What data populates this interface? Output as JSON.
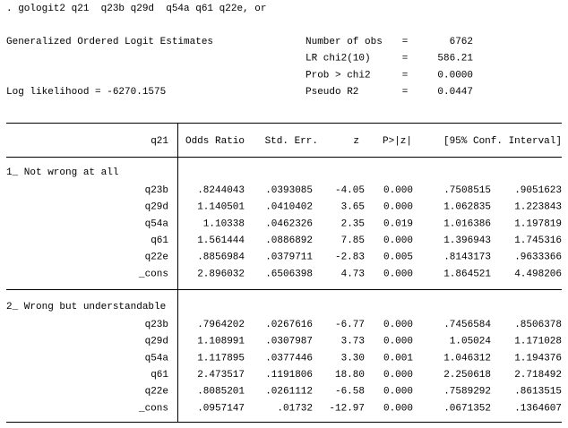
{
  "command": ". gologit2 q21  q23b q29d  q54a q61 q22e, or",
  "header": {
    "title": "Generalized Ordered Logit Estimates",
    "log_likelihood": "Log likelihood = -6270.1575",
    "stats": [
      {
        "label": "Number of obs",
        "eq": "=",
        "value": "6762"
      },
      {
        "label": "LR chi2(10)",
        "eq": "=",
        "value": "586.21"
      },
      {
        "label": "Prob > chi2",
        "eq": "=",
        "value": "0.0000"
      },
      {
        "label": "Pseudo R2",
        "eq": "=",
        "value": "0.0447"
      }
    ]
  },
  "table": {
    "columns": [
      "q21",
      "Odds Ratio",
      "Std. Err.",
      "z",
      "P>|z|",
      "[95% Conf. Interval]"
    ],
    "groups": [
      {
        "label": "1_ Not wrong at all",
        "rows": [
          [
            "q23b",
            ".8244043",
            ".0393085",
            "-4.05",
            "0.000",
            ".7508515",
            ".9051623"
          ],
          [
            "q29d",
            "1.140501",
            ".0410402",
            "3.65",
            "0.000",
            "1.062835",
            "1.223843"
          ],
          [
            "q54a",
            "1.10338",
            ".0462326",
            "2.35",
            "0.019",
            "1.016386",
            "1.197819"
          ],
          [
            "q61",
            "1.561444",
            ".0886892",
            "7.85",
            "0.000",
            "1.396943",
            "1.745316"
          ],
          [
            "q22e",
            ".8856984",
            ".0379711",
            "-2.83",
            "0.005",
            ".8143173",
            ".9633366"
          ],
          [
            "_cons",
            "2.896032",
            ".6506398",
            "4.73",
            "0.000",
            "1.864521",
            "4.498206"
          ]
        ]
      },
      {
        "label": "2_ Wrong but understandable",
        "rows": [
          [
            "q23b",
            ".7964202",
            ".0267616",
            "-6.77",
            "0.000",
            ".7456584",
            ".8506378"
          ],
          [
            "q29d",
            "1.108991",
            ".0307987",
            "3.73",
            "0.000",
            "1.05024",
            "1.171028"
          ],
          [
            "q54a",
            "1.117895",
            ".0377446",
            "3.30",
            "0.001",
            "1.046312",
            "1.194376"
          ],
          [
            "q61",
            "2.473517",
            ".1191806",
            "18.80",
            "0.000",
            "2.250618",
            "2.718492"
          ],
          [
            "q22e",
            ".8085201",
            ".0261112",
            "-6.58",
            "0.000",
            ".7589292",
            ".8613515"
          ],
          [
            "_cons",
            ".0957147",
            ".01732",
            "-12.97",
            "0.000",
            ".0671352",
            ".1364607"
          ]
        ]
      }
    ]
  }
}
